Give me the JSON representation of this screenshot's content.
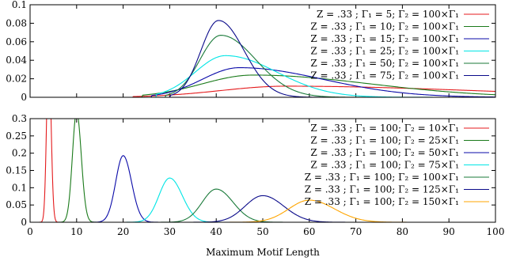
{
  "chart_data": [
    {
      "type": "line",
      "xlabel": "",
      "ylabel": "",
      "xlim": [
        0,
        100
      ],
      "ylim": [
        0,
        0.1
      ],
      "yticks": [
        "0",
        "0.02",
        "0.04",
        "0.06",
        "0.08",
        "0.1"
      ],
      "ytick_values": [
        0,
        0.02,
        0.04,
        0.06,
        0.08,
        0.1
      ],
      "show_xtick_labels": false,
      "legend_position": "top-right",
      "series": [
        {
          "legend": "Z = .33 ; Γ₁ = 5; Γ₂ = 100×Γ₁",
          "color": "#e41a1c",
          "peak_x": 55,
          "peak_y": 0.012,
          "sigma_left": 14,
          "sigma_right": 40,
          "start_x": 22
        },
        {
          "legend": "Z = .33 ; Γ₁ = 10; Γ₂ = 100×Γ₁",
          "color": "#1a7a1a",
          "peak_x": 48,
          "peak_y": 0.024,
          "sigma_left": 11,
          "sigma_right": 25,
          "start_x": 24
        },
        {
          "legend": "Z = .33 ; Γ₁ = 15; Γ₂ = 100×Γ₁",
          "color": "#0a0aa8",
          "peak_x": 45,
          "peak_y": 0.032,
          "sigma_left": 8,
          "sigma_right": 18,
          "start_x": 26
        },
        {
          "legend": "Z = .33 ; Γ₁ = 25; Γ₂ = 100×Γ₁",
          "color": "#00e5e5",
          "peak_x": 42,
          "peak_y": 0.045,
          "sigma_left": 6.5,
          "sigma_right": 11,
          "start_x": 27
        },
        {
          "legend": "Z = .33 ; Γ₁ = 50; Γ₂ = 100×Γ₁",
          "color": "#1a7a3a",
          "peak_x": 41,
          "peak_y": 0.067,
          "sigma_left": 4.5,
          "sigma_right": 7.5,
          "start_x": 29
        },
        {
          "legend": "Z = .33 ; Γ₁ = 75; Γ₂ = 100×Γ₁",
          "color": "#0a0a8a",
          "peak_x": 40.5,
          "peak_y": 0.083,
          "sigma_left": 3.8,
          "sigma_right": 5.5,
          "start_x": 30
        }
      ]
    },
    {
      "type": "line",
      "xlabel": "Maximum Motif Length",
      "ylabel": "",
      "xlim": [
        0,
        100
      ],
      "ylim": [
        0,
        0.3
      ],
      "xticks": [
        "0",
        "10",
        "20",
        "30",
        "40",
        "50",
        "60",
        "70",
        "80",
        "90",
        "100"
      ],
      "xtick_values": [
        0,
        10,
        20,
        30,
        40,
        50,
        60,
        70,
        80,
        90,
        100
      ],
      "yticks": [
        "0",
        "0.05",
        "0.1",
        "0.15",
        "0.2",
        "0.25",
        "0.3"
      ],
      "ytick_values": [
        0,
        0.05,
        0.1,
        0.15,
        0.2,
        0.25,
        0.3
      ],
      "legend_position": "top-right",
      "series": [
        {
          "legend": "Z = .33 ; Γ₁ = 100; Γ₂ = 10×Γ₁",
          "color": "#e41a1c",
          "peak_x": 4,
          "peak_y": 0.5,
          "sigma_left": 0.45,
          "sigma_right": 0.5
        },
        {
          "legend": "Z = .33 ; Γ₁ = 100; Γ₂ = 25×Γ₁",
          "color": "#1a7a1a",
          "peak_x": 10,
          "peak_y": 0.32,
          "sigma_left": 0.9,
          "sigma_right": 1.0
        },
        {
          "legend": "Z = .33 ; Γ₁ = 100; Γ₂ = 50×Γ₁",
          "color": "#0a0aa8",
          "peak_x": 20,
          "peak_y": 0.193,
          "sigma_left": 1.6,
          "sigma_right": 1.8
        },
        {
          "legend": "Z = .33 ; Γ₁ = 100; Γ₂ = 75×Γ₁",
          "color": "#00e5e5",
          "peak_x": 30,
          "peak_y": 0.128,
          "sigma_left": 2.3,
          "sigma_right": 2.7
        },
        {
          "legend": "Z = .33 ; Γ₁ = 100; Γ₂ = 100×Γ₁",
          "color": "#1a7a3a",
          "peak_x": 40,
          "peak_y": 0.096,
          "sigma_left": 3.0,
          "sigma_right": 3.6
        },
        {
          "legend": "Z = .33 ; Γ₁ = 100; Γ₂ = 125×Γ₁",
          "color": "#0a0a8a",
          "peak_x": 50,
          "peak_y": 0.077,
          "sigma_left": 3.8,
          "sigma_right": 4.5
        },
        {
          "legend": "Z = .33 ; Γ₁ = 100; Γ₂ = 150×Γ₁",
          "color": "#ffa500",
          "peak_x": 60,
          "peak_y": 0.064,
          "sigma_left": 4.4,
          "sigma_right": 5.4
        }
      ]
    }
  ]
}
